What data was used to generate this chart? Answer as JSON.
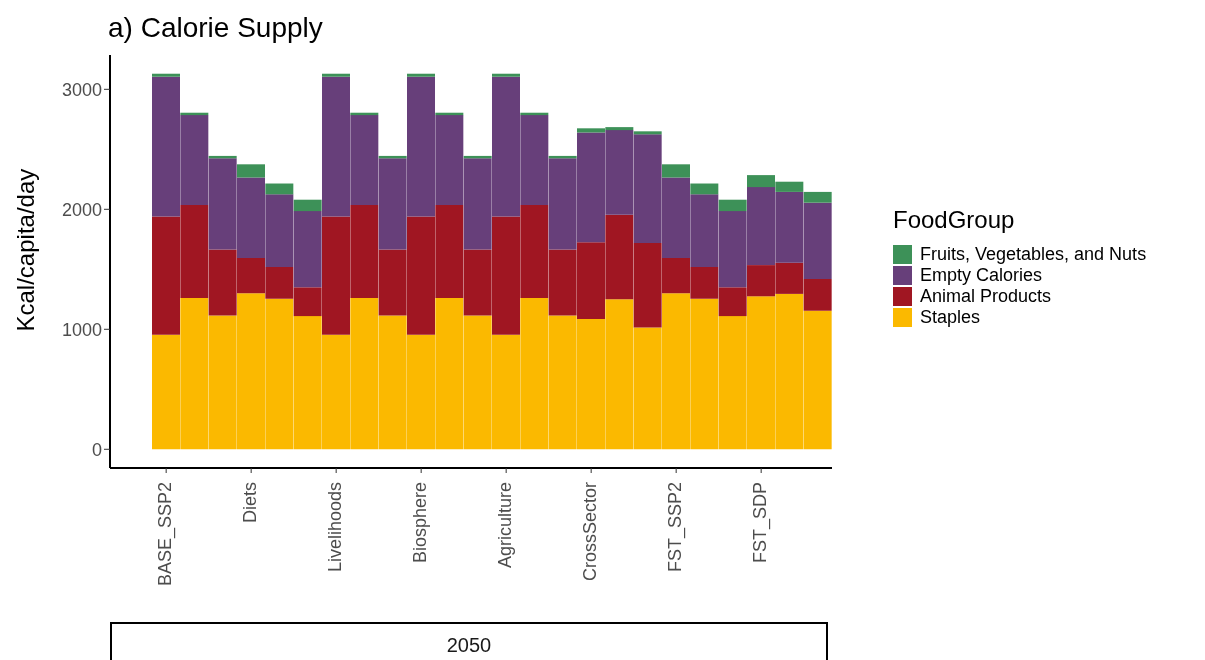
{
  "chart_data": {
    "type": "bar",
    "title": "a) Calorie Supply",
    "ylabel": "Kcal/capita/day",
    "legend_title": "FoodGroup",
    "stacked": true,
    "legend": "right",
    "annotations": [
      "2050"
    ],
    "categories": [
      "BASE_SSP2",
      null,
      null,
      "Diets",
      null,
      null,
      "Livelihoods",
      null,
      null,
      "Biosphere",
      null,
      null,
      "Agriculture",
      null,
      null,
      "CrossSector",
      null,
      null,
      "FST_SSP2",
      null,
      null,
      "FST_SDP",
      null,
      null
    ],
    "series": [
      {
        "name": "Staples",
        "color": "#fbb900",
        "values": [
          955,
          1260,
          1115,
          1300,
          1255,
          1110,
          955,
          1260,
          1115,
          955,
          1260,
          1115,
          955,
          1260,
          1115,
          1085,
          1250,
          1015,
          1300,
          1255,
          1110,
          1275,
          1295,
          1155
        ]
      },
      {
        "name": "Animal Products",
        "color": "#a01622",
        "values": [
          985,
          775,
          550,
          295,
          265,
          240,
          985,
          775,
          550,
          985,
          775,
          550,
          985,
          775,
          550,
          640,
          705,
          705,
          295,
          265,
          240,
          260,
          260,
          265
        ]
      },
      {
        "name": "Empty Calories",
        "color": "#673f7a",
        "values": [
          1165,
          750,
          760,
          670,
          605,
          635,
          1165,
          750,
          760,
          1165,
          750,
          760,
          1165,
          750,
          760,
          915,
          705,
          905,
          670,
          605,
          635,
          650,
          590,
          635
        ]
      },
      {
        "name": "Fruits, Vegetables, and Nuts",
        "color": "#3d9158",
        "values": [
          25,
          20,
          20,
          110,
          90,
          95,
          25,
          20,
          20,
          25,
          20,
          20,
          25,
          20,
          20,
          35,
          25,
          25,
          110,
          90,
          95,
          100,
          85,
          90
        ]
      }
    ],
    "ylim": [
      -156,
      3286
    ],
    "yticks": [
      0,
      1000,
      2000,
      3000
    ]
  }
}
